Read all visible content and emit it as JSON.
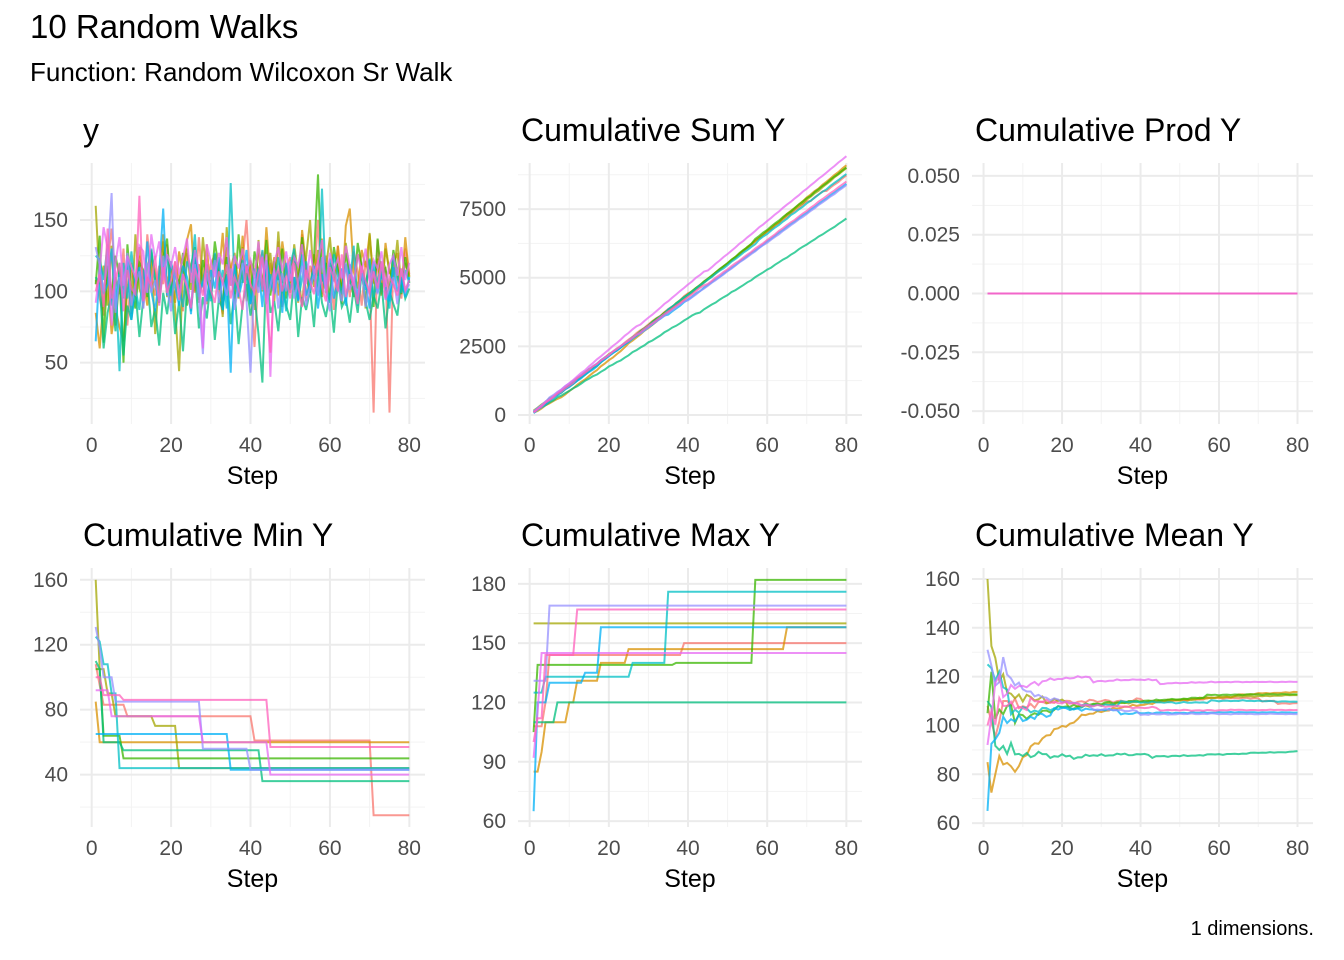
{
  "title": "10 Random Walks",
  "subtitle": "Function: Random Wilcoxon Sr Walk",
  "caption": "1 dimensions.",
  "chart_data": [
    {
      "type": "line",
      "title": "y",
      "xlabel": "Step",
      "transform": "none",
      "xticks": [
        0,
        20,
        40,
        60,
        80
      ],
      "xlim": [
        1,
        80
      ],
      "grid": true,
      "yticks": [
        50,
        100,
        150
      ],
      "ytick_labels": [
        "50",
        "100",
        "150"
      ],
      "ylim": [
        7,
        190
      ],
      "series": [
        {
          "color": "#F8766D",
          "values": [
            108,
            95,
            83,
            120,
            144,
            110,
            98,
            130,
            76,
            115,
            102,
            125,
            88,
            140,
            112,
            97,
            118,
            105,
            133,
            92,
            121,
            108,
            86,
            127,
            114,
            99,
            138,
            104,
            91,
            119,
            126,
            100,
            84,
            131,
            117,
            95,
            109,
            122,
            150,
            103,
            61,
            113,
            128,
            97,
            120,
            106,
            135,
            89,
            116,
            124,
            101,
            112,
            140,
            93,
            118,
            107,
            150,
            98,
            125,
            111,
            87,
            132,
            104,
            119,
            96,
            128,
            113,
            90,
            121,
            109,
            15,
            136,
            102,
            117,
            15,
            124,
            108,
            95,
            130,
            112
          ]
        },
        {
          "color": "#D89000",
          "values": [
            85,
            60,
            95,
            110,
            70,
            88,
            75,
            65,
            102,
            120,
            96,
            131,
            108,
            90,
            125,
            114,
            99,
            140,
            105,
            118,
            92,
            128,
            111,
            136,
            147,
            100,
            119,
            107,
            133,
            95,
            122,
            110,
            141,
            98,
            116,
            127,
            104,
            139,
            93,
            121,
            112,
            130,
            101,
            145,
            109,
            124,
            97,
            135,
            115,
            106,
            128,
            92,
            143,
            118,
            103,
            126,
            111,
            137,
            99,
            120,
            108,
            132,
            95,
            146,
            158,
            114,
            102,
            129,
            117,
            140,
            106,
            123,
            98,
            134,
            112,
            119,
            127,
            101,
            138,
            110
          ]
        },
        {
          "color": "#A3A500",
          "values": [
            160,
            105,
            118,
            90,
            132,
            76,
            110,
            98,
            125,
            84,
            140,
            102,
            93,
            117,
            128,
            70,
            112,
            135,
            96,
            121,
            88,
            44,
            115,
            130,
            101,
            124,
            92,
            138,
            109,
            97,
            126,
            113,
            82,
            145,
            104,
            119,
            95,
            131,
            108,
            122,
            87,
            136,
            100,
            115,
            127,
            93,
            142,
            106,
            118,
            99,
            133,
            111,
            90,
            124,
            150,
            103,
            129,
            96,
            117,
            138,
            107,
            121,
            91,
            134,
            112,
            100,
            126,
            118,
            88,
            141,
            105,
            123,
            97,
            130,
            114,
            109,
            136,
            102,
            120,
            111
          ]
        },
        {
          "color": "#39B600",
          "values": [
            105,
            139,
            64,
            118,
            97,
            125,
            110,
            50,
            133,
            101,
            88,
            120,
            115,
            96,
            129,
            108,
            92,
            124,
            137,
            99,
            113,
            105,
            127,
            90,
            118,
            131,
            94,
            122,
            109,
            100,
            135,
            116,
            87,
            124,
            111,
            98,
            140,
            106,
            119,
            93,
            128,
            113,
            102,
            136,
            97,
            121,
            108,
            130,
            95,
            117,
            125,
            103,
            138,
            112,
            99,
            123,
            182,
            107,
            120,
            94,
            131,
            115,
            101,
            127,
            110,
            96,
            134,
            118,
            104,
            122,
            89,
            137,
            109,
            116,
            100,
            129,
            113,
            98,
            124,
            106
          ]
        },
        {
          "color": "#00BF7D",
          "values": [
            110,
            105,
            60,
            85,
            98,
            72,
            120,
            55,
            90,
            80,
            101,
            68,
            95,
            110,
            75,
            88,
            62,
            99,
            84,
            107,
            70,
            93,
            58,
            102,
            86,
            115,
            74,
            96,
            81,
            108,
            66,
            94,
            88,
            112,
            77,
            100,
            63,
            91,
            105,
            83,
            97,
            70,
            36,
            118,
            85,
            93,
            72,
            104,
            90,
            80,
            110,
            68,
            96,
            87,
            101,
            75,
            115,
            92,
            82,
            99,
            71,
            108,
            89,
            95,
            78,
            103,
            85,
            114,
            93,
            80,
            97,
            88,
            106,
            74,
            100,
            91,
            83,
            110,
            95,
            102
          ]
        },
        {
          "color": "#00BFC4",
          "values": [
            125,
            122,
            108,
            133,
            90,
            110,
            44,
            120,
            95,
            128,
            102,
            87,
            115,
            99,
            130,
            106,
            92,
            118,
            125,
            97,
            111,
            104,
            89,
            121,
            113,
            140,
            96,
            108,
            119,
            93,
            127,
            101,
            115,
            88,
            176,
            105,
            97,
            122,
            110,
            91,
            116,
            103,
            129,
            95,
            112,
            99,
            124,
            107,
            86,
            118,
            130,
            94,
            109,
            121,
            100,
            113,
            97,
            172,
            104,
            92,
            126,
            111,
            98,
            119,
            105,
            132,
            90,
            114,
            101,
            123,
            96,
            108,
            117,
            102,
            88,
            125,
            110,
            99,
            115,
            106
          ]
        },
        {
          "color": "#00B0F6",
          "values": [
            65,
            120,
            98,
            105,
            130,
            88,
            112,
            95,
            125,
            80,
            108,
            117,
            92,
            135,
            100,
            86,
            113,
            158,
            97,
            121,
            104,
            90,
            118,
            110,
            84,
            127,
            99,
            106,
            93,
            115,
            102,
            124,
            87,
            111,
            43,
            119,
            96,
            108,
            129,
            91,
            103,
            116,
            89,
            122,
            107,
            98,
            114,
            85,
            120,
            101,
            110,
            93,
            126,
            97,
            105,
            118,
            88,
            112,
            100,
            123,
            95,
            108,
            116,
            90,
            119,
            102,
            97,
            114,
            106,
            88,
            121,
            99,
            111,
            104,
            93,
            117,
            100,
            108,
            96,
            110
          ]
        },
        {
          "color": "#9590FF",
          "values": [
            131,
            118,
            100,
            122,
            169,
            85,
            110,
            96,
            127,
            90,
            105,
            114,
            88,
            120,
            99,
            108,
            93,
            125,
            102,
            86,
            117,
            97,
            111,
            104,
            89,
            119,
            95,
            56,
            113,
            101,
            122,
            92,
            108,
            97,
            116,
            87,
            106,
            120,
            94,
            43,
            110,
            99,
            125,
            91,
            104,
            116,
            88,
            113,
            100,
            121,
            95,
            107,
            118,
            90,
            103,
            112,
            97,
            124,
            99,
            86,
            115,
            104,
            93,
            120,
            101,
            109,
            96,
            117,
            89,
            106,
            113,
            98,
            121,
            94,
            102,
            110,
            91,
            116,
            100,
            105
          ]
        },
        {
          "color": "#E76BF3",
          "values": [
            92,
            115,
            145,
            130,
            76,
            120,
            138,
            104,
            125,
            117,
            110,
            132,
            128,
            99,
            140,
            122,
            135,
            108,
            126,
            118,
            131,
            112,
            124,
            137,
            106,
            129,
            115,
            60,
            133,
            121,
            110,
            127,
            119,
            138,
            104,
            125,
            116,
            130,
            113,
            122,
            109,
            135,
            101,
            126,
            40,
            120,
            131,
            114,
            128,
            107,
            124,
            118,
            133,
            105,
            129,
            112,
            121,
            136,
            100,
            127,
            115,
            123,
            109,
            132,
            118,
            104,
            126,
            113,
            130,
            107,
            122,
            116,
            128,
            103,
            119,
            125,
            111,
            131,
            108,
            120
          ]
        },
        {
          "color": "#FF62BC",
          "values": [
            100,
            112,
            89,
            144,
            95,
            108,
            120,
            86,
            115,
            102,
            98,
            167,
            93,
            110,
            104,
            125,
            90,
            117,
            99,
            108,
            121,
            94,
            112,
            103,
            88,
            116,
            107,
            97,
            123,
            101,
            92,
            114,
            106,
            119,
            95,
            110,
            102,
            87,
            118,
            105,
            99,
            113,
            124,
            91,
            57,
            108,
            116,
            100,
            111,
            95,
            120,
            104,
            89,
            115,
            107,
            98,
            122,
            103,
            93,
            117,
            109,
            100,
            126,
            96,
            112,
            104,
            91,
            118,
            107,
            99,
            114,
            102,
            121,
            95,
            110,
            105,
            97,
            116,
            101,
            108
          ]
        }
      ]
    },
    {
      "type": "line",
      "title": "Cumulative Sum Y",
      "xlabel": "Step",
      "transform": "cumsum",
      "xticks": [
        0,
        20,
        40,
        60,
        80
      ],
      "yticks": [
        0,
        2500,
        5000,
        7500
      ],
      "ytick_labels": [
        "0",
        "2500",
        "5000",
        "7500"
      ],
      "ylim": [
        -330,
        9180
      ],
      "grid": true
    },
    {
      "type": "line",
      "title": "Cumulative Prod Y",
      "xlabel": "Step",
      "transform": "cumprod",
      "constant_value": 0,
      "xticks": [
        0,
        20,
        40,
        60,
        80
      ],
      "yticks": [
        -0.05,
        -0.025,
        0,
        0.025,
        0.05
      ],
      "ytick_labels": [
        "-0.050",
        "-0.025",
        "0.000",
        "0.025",
        "0.050"
      ],
      "ylim": [
        -0.0555,
        0.0555
      ],
      "grid": true
    },
    {
      "type": "line",
      "title": "Cumulative Min Y",
      "xlabel": "Step",
      "transform": "cummin",
      "xticks": [
        0,
        20,
        40,
        60,
        80
      ],
      "yticks": [
        40,
        80,
        120,
        160
      ],
      "ytick_labels": [
        "40",
        "80",
        "120",
        "160"
      ],
      "ylim": [
        7.75,
        167.25
      ],
      "grid": true
    },
    {
      "type": "line",
      "title": "Cumulative Max Y",
      "xlabel": "Step",
      "transform": "cummax",
      "xticks": [
        0,
        20,
        40,
        60,
        80
      ],
      "yticks": [
        60,
        90,
        120,
        150,
        180
      ],
      "ytick_labels": [
        "60",
        "90",
        "120",
        "150",
        "180"
      ],
      "ylim": [
        57,
        188
      ],
      "grid": true
    },
    {
      "type": "line",
      "title": "Cumulative Mean Y",
      "xlabel": "Step",
      "transform": "cummean",
      "xticks": [
        0,
        20,
        40,
        60,
        80
      ],
      "yticks": [
        60,
        80,
        100,
        120,
        140,
        160
      ],
      "ytick_labels": [
        "60",
        "80",
        "100",
        "120",
        "140",
        "160"
      ],
      "ylim": [
        58.4,
        164.5
      ],
      "grid": true
    }
  ]
}
